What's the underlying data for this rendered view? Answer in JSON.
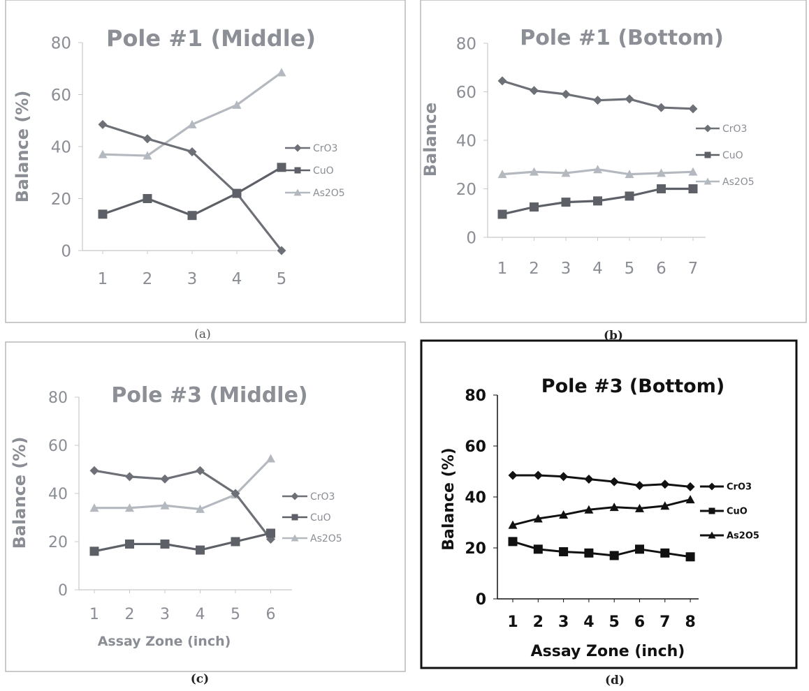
{
  "colors": {
    "cro3": "#6d7076",
    "cuo": "#5d6066",
    "as2o5": "#b4b9c0",
    "axis_text": "#8a8e94",
    "title_text": "#8c9096",
    "dark": "#111111"
  },
  "chart_data": [
    {
      "type": "line",
      "caption": "(a)",
      "title": "Pole #1 (Middle)",
      "xlabel": "",
      "ylabel": "Balance (%)",
      "x": [
        1,
        2,
        3,
        4,
        5
      ],
      "ylim": [
        0,
        80
      ],
      "yticks": [
        0,
        20,
        40,
        60,
        80
      ],
      "legend": "right",
      "series": [
        {
          "name": "CrO3",
          "marker": "diamond",
          "values": [
            48.5,
            43,
            38,
            22,
            0
          ]
        },
        {
          "name": "CuO",
          "marker": "square",
          "values": [
            14,
            20,
            13.5,
            22,
            32
          ]
        },
        {
          "name": "As2O5",
          "marker": "triangle",
          "values": [
            37,
            36.5,
            48.5,
            56,
            68.5
          ]
        }
      ]
    },
    {
      "type": "line",
      "caption": "(b)",
      "title": "Pole #1 (Bottom)",
      "xlabel": "",
      "ylabel": "Balance",
      "x": [
        1,
        2,
        3,
        4,
        5,
        6,
        7
      ],
      "ylim": [
        0,
        80
      ],
      "yticks": [
        0,
        20,
        40,
        60,
        80
      ],
      "legend": "right",
      "series": [
        {
          "name": "CrO3",
          "marker": "diamond",
          "values": [
            64.5,
            60.5,
            59,
            56.5,
            57,
            53.5,
            53
          ]
        },
        {
          "name": "CuO",
          "marker": "square",
          "values": [
            9.5,
            12.5,
            14.5,
            15,
            17,
            20,
            20
          ]
        },
        {
          "name": "As2O5",
          "marker": "triangle",
          "values": [
            26,
            27,
            26.5,
            28,
            26,
            26.5,
            27
          ]
        }
      ]
    },
    {
      "type": "line",
      "caption": "(c)",
      "title": "Pole #3 (Middle)",
      "xlabel": "Assay Zone (inch)",
      "ylabel": "Balance (%)",
      "x": [
        1,
        2,
        3,
        4,
        5,
        6
      ],
      "ylim": [
        0,
        80
      ],
      "yticks": [
        0,
        20,
        40,
        60,
        80
      ],
      "legend": "right",
      "series": [
        {
          "name": "CrO3",
          "marker": "diamond",
          "values": [
            49.5,
            47,
            46,
            49.5,
            40,
            21
          ]
        },
        {
          "name": "CuO",
          "marker": "square",
          "values": [
            16,
            19,
            19,
            16.5,
            20,
            23.5
          ]
        },
        {
          "name": "As2O5",
          "marker": "triangle",
          "values": [
            34,
            34,
            35,
            33.5,
            39.5,
            54.5
          ]
        }
      ]
    },
    {
      "type": "line",
      "caption": "(d)",
      "title": "Pole #3 (Bottom)",
      "xlabel": "Assay Zone (inch)",
      "ylabel": "Balance (%)",
      "x": [
        1,
        2,
        3,
        4,
        5,
        6,
        7,
        8
      ],
      "ylim": [
        0,
        80
      ],
      "yticks": [
        0,
        20,
        40,
        60,
        80
      ],
      "legend": "right",
      "series": [
        {
          "name": "CrO3",
          "marker": "diamond",
          "values": [
            48.5,
            48.5,
            48,
            47,
            46,
            44.5,
            45,
            44
          ]
        },
        {
          "name": "CuO",
          "marker": "square",
          "values": [
            22.5,
            19.5,
            18.5,
            18,
            17,
            19.5,
            18,
            16.5
          ]
        },
        {
          "name": "As2O5",
          "marker": "triangle",
          "values": [
            29,
            31.5,
            33,
            35,
            36,
            35.5,
            36.5,
            39
          ]
        }
      ]
    }
  ]
}
